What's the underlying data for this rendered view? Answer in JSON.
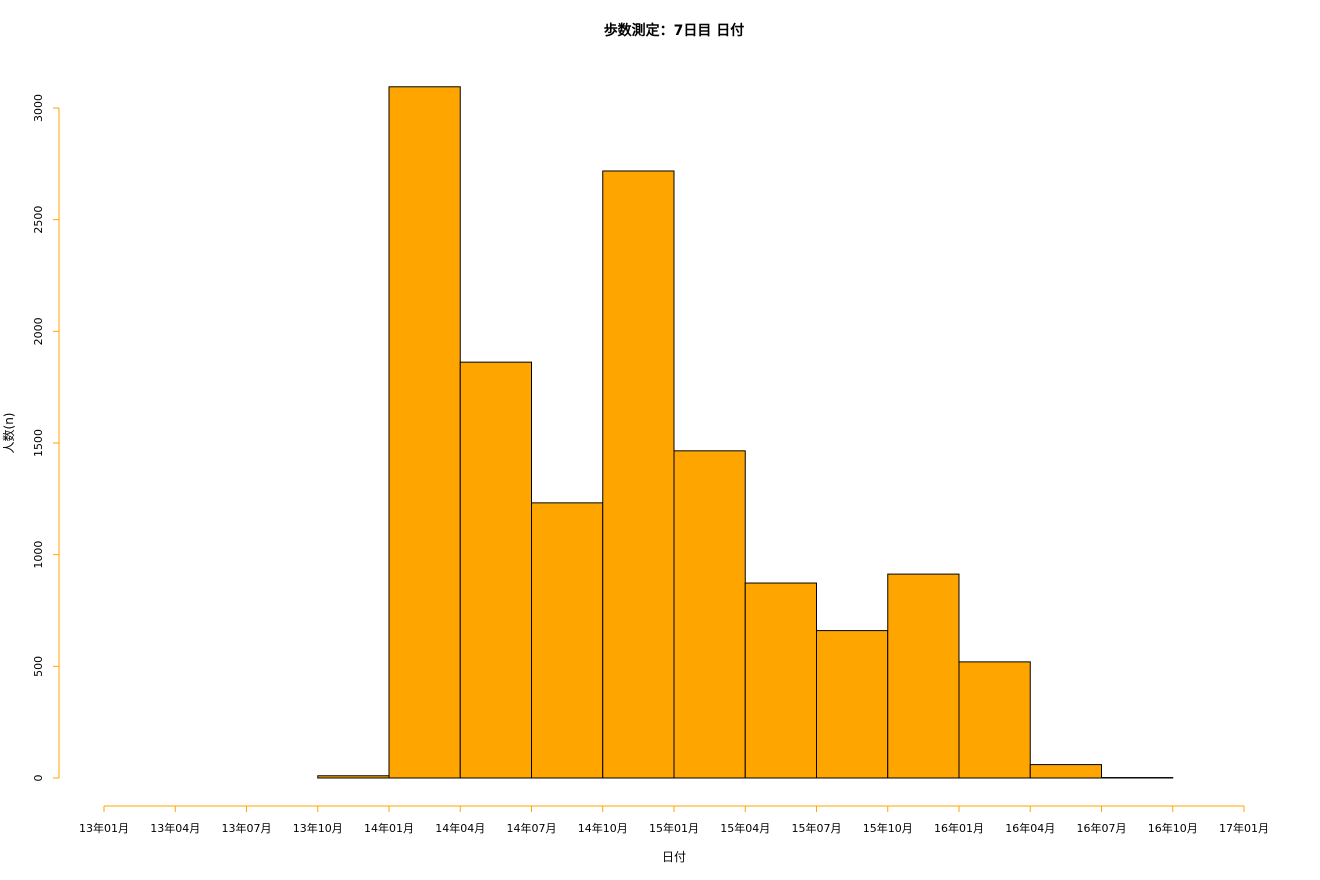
{
  "chart_data": {
    "type": "bar",
    "title": "歩数測定：7日目 日付",
    "xlabel": "日付",
    "ylabel": "人数(n)",
    "x_ticks": [
      "13年01月",
      "13年04月",
      "13年07月",
      "13年10月",
      "14年01月",
      "14年04月",
      "14年07月",
      "14年10月",
      "15年01月",
      "15年04月",
      "15年07月",
      "15年10月",
      "16年01月",
      "16年04月",
      "16年07月",
      "16年10月",
      "17年01月"
    ],
    "bins": [
      {
        "start": "13年01月",
        "end": "13年04月",
        "value": 0
      },
      {
        "start": "13年04月",
        "end": "13年07月",
        "value": 0
      },
      {
        "start": "13年07月",
        "end": "13年10月",
        "value": 0
      },
      {
        "start": "13年10月",
        "end": "14年01月",
        "value": 10
      },
      {
        "start": "14年01月",
        "end": "14年04月",
        "value": 3095
      },
      {
        "start": "14年04月",
        "end": "14年07月",
        "value": 1862
      },
      {
        "start": "14年07月",
        "end": "14年10月",
        "value": 1232
      },
      {
        "start": "14年10月",
        "end": "15年01月",
        "value": 2718
      },
      {
        "start": "15年01月",
        "end": "15年04月",
        "value": 1465
      },
      {
        "start": "15年04月",
        "end": "15年07月",
        "value": 873
      },
      {
        "start": "15年07月",
        "end": "15年10月",
        "value": 660
      },
      {
        "start": "15年10月",
        "end": "16年01月",
        "value": 913
      },
      {
        "start": "16年01月",
        "end": "16年04月",
        "value": 520
      },
      {
        "start": "16年04月",
        "end": "16年07月",
        "value": 60
      },
      {
        "start": "16年07月",
        "end": "16年10月",
        "value": 2
      },
      {
        "start": "16年10月",
        "end": "17年01月",
        "value": 0
      }
    ],
    "y_ticks": [
      0,
      500,
      1000,
      1500,
      2000,
      2500,
      3000
    ],
    "ylim": [
      0,
      3000
    ],
    "grid": false,
    "colors": {
      "bar_fill": "#FFA500",
      "bar_stroke": "#000000",
      "axis": "#FFA500"
    }
  }
}
